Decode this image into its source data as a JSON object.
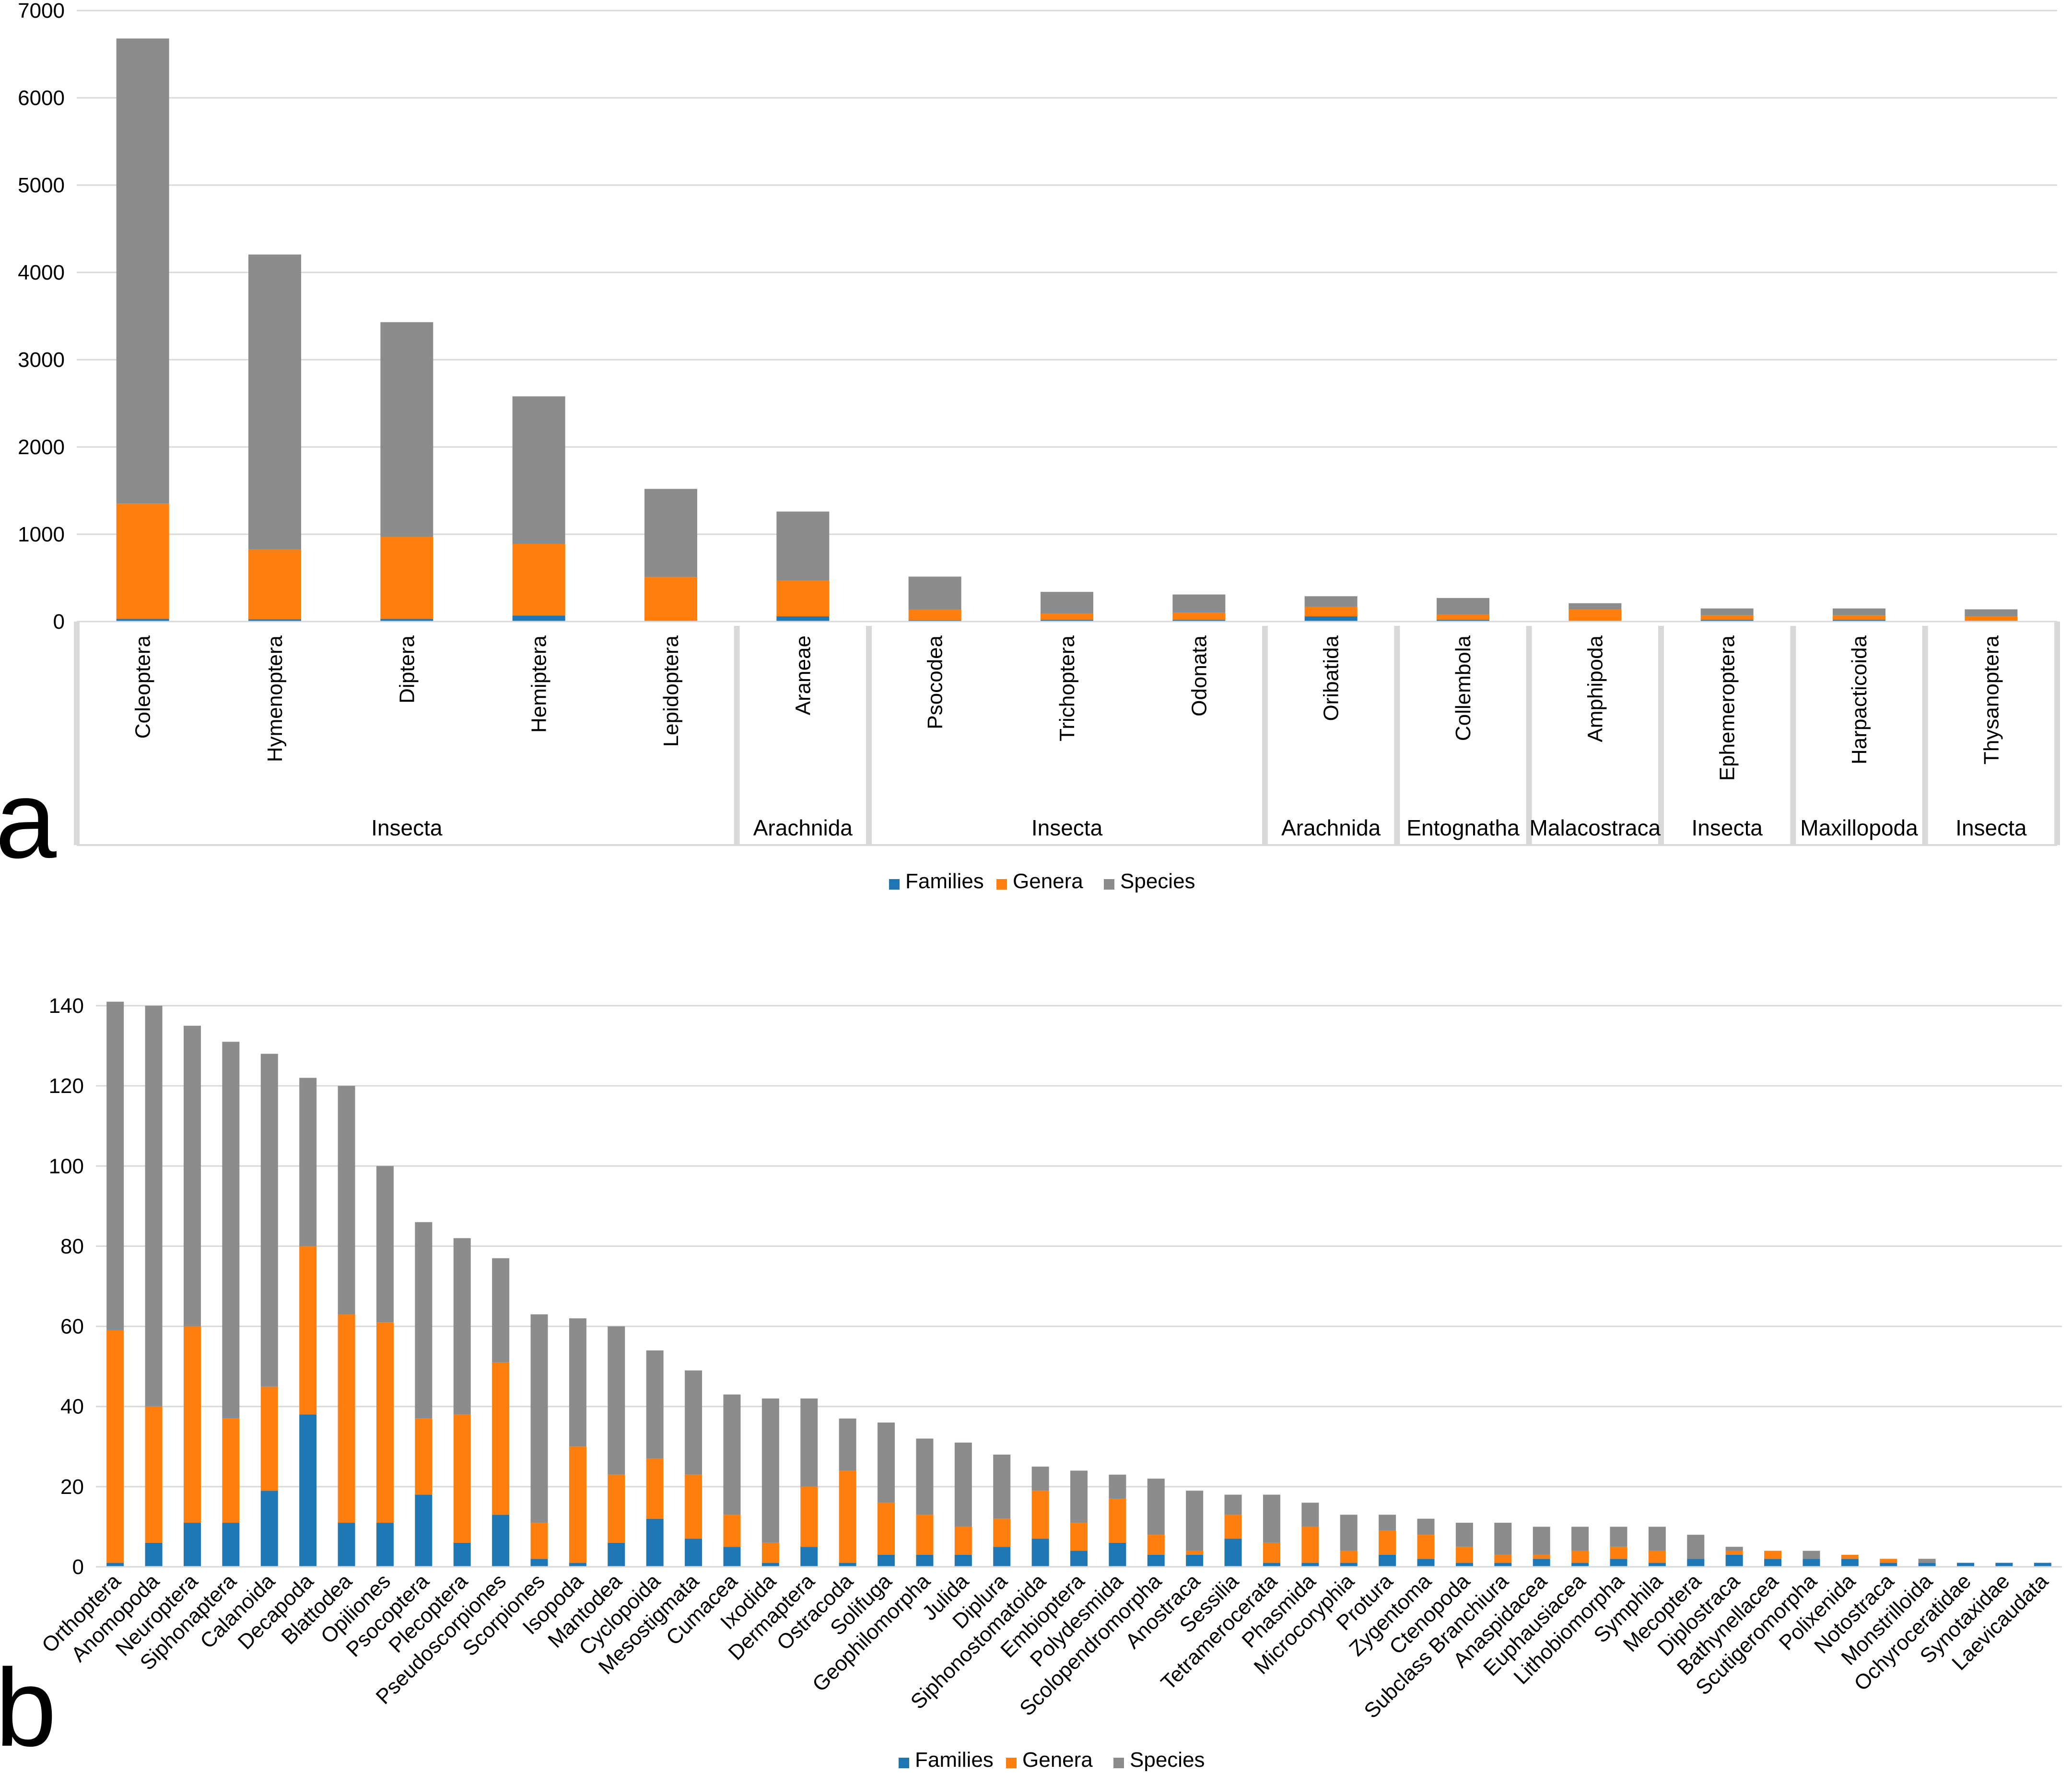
{
  "colors": {
    "families": "#1f77b4",
    "genera": "#ff7f0e",
    "species": "#8c8c8c"
  },
  "chart_data": [
    {
      "panel": "a",
      "type": "bar",
      "stacked": true,
      "ylim": [
        0,
        7000
      ],
      "yticks": [
        0,
        1000,
        2000,
        3000,
        4000,
        5000,
        6000,
        7000
      ],
      "categories": [
        "Coleoptera",
        "Hymenoptera",
        "Diptera",
        "Hemiptera",
        "Lepidoptera",
        "Araneae",
        "Psocodea",
        "Trichoptera",
        "Odonata",
        "Oribatida",
        "Collembola",
        "Amphipoda",
        "Ephemeroptera",
        "Harpacticoida",
        "Thysanoptera"
      ],
      "groups": [
        {
          "label": "Insecta",
          "count": 5
        },
        {
          "label": "Arachnida",
          "count": 1
        },
        {
          "label": "Insecta",
          "count": 3
        },
        {
          "label": "Arachnida",
          "count": 1
        },
        {
          "label": "Entognatha",
          "count": 1
        },
        {
          "label": "Malacostraca",
          "count": 1
        },
        {
          "label": "Insecta",
          "count": 1
        },
        {
          "label": "Maxillopoda",
          "count": 1
        },
        {
          "label": "Insecta",
          "count": 1
        }
      ],
      "series": [
        {
          "name": "Families",
          "values": [
            30,
            25,
            30,
            70,
            10,
            60,
            15,
            20,
            20,
            60,
            20,
            10,
            20,
            20,
            10
          ]
        },
        {
          "name": "Genera",
          "values": [
            1320,
            800,
            940,
            820,
            500,
            410,
            120,
            70,
            80,
            110,
            60,
            130,
            50,
            50,
            50
          ]
        },
        {
          "name": "Species",
          "values": [
            5330,
            3380,
            2460,
            1690,
            1010,
            790,
            380,
            250,
            210,
            120,
            190,
            70,
            80,
            80,
            80
          ]
        }
      ]
    },
    {
      "panel": "b",
      "type": "bar",
      "stacked": true,
      "ylim": [
        0,
        140
      ],
      "yticks": [
        0,
        20,
        40,
        60,
        80,
        100,
        120,
        140
      ],
      "categories": [
        "Orthoptera",
        "Anomopoda",
        "Neuroptera",
        "Siphonaptera",
        "Calanoida",
        "Decapoda",
        "Blattodea",
        "Opiliones",
        "Psocoptera",
        "Plecoptera",
        "Pseudoscorpiones",
        "Scorpiones",
        "Isopoda",
        "Mantodea",
        "Cyclopoida",
        "Mesostigmata",
        "Cumacea",
        "Ixodida",
        "Dermaptera",
        "Ostracoda",
        "Solifuga",
        "Geophilomorpha",
        "Julida",
        "Diplura",
        "Siphonostomatoida",
        "Embioptera",
        "Polydesmida",
        "Scolopendromorpha",
        "Anostraca",
        "Sessilia",
        "Tetramerocerata",
        "Phasmida",
        "Microcoryphia",
        "Protura",
        "Zygentoma",
        "Ctenopoda",
        "Subclass Branchiura",
        "Anaspidacea",
        "Euphausiacea",
        "Lithobiomorpha",
        "Symphila",
        "Mecoptera",
        "Diplostraca",
        "Bathynellacea",
        "Scutigeromorpha",
        "Polixenida",
        "Notostraca",
        "Monstrilloida",
        "Ochyroceratidae",
        "Synotaxidae",
        "Laevicaudata"
      ],
      "series": [
        {
          "name": "Families",
          "values": [
            1,
            6,
            11,
            11,
            19,
            38,
            11,
            11,
            18,
            6,
            13,
            2,
            1,
            6,
            12,
            7,
            5,
            1,
            5,
            1,
            3,
            3,
            3,
            5,
            7,
            4,
            6,
            3,
            3,
            7,
            1,
            1,
            1,
            3,
            2,
            1,
            1,
            2,
            1,
            2,
            1,
            2,
            3,
            2,
            2,
            2,
            1,
            1,
            1,
            1,
            1
          ]
        },
        {
          "name": "Genera",
          "values": [
            58,
            34,
            49,
            26,
            26,
            42,
            52,
            50,
            19,
            32,
            38,
            9,
            29,
            17,
            15,
            16,
            8,
            5,
            15,
            23,
            13,
            10,
            7,
            7,
            12,
            7,
            11,
            5,
            1,
            6,
            5,
            9,
            3,
            6,
            6,
            4,
            2,
            1,
            3,
            3,
            3,
            0,
            1,
            2,
            0,
            1,
            1,
            0,
            0,
            0,
            0
          ]
        },
        {
          "name": "Species",
          "values": [
            82,
            100,
            75,
            94,
            83,
            42,
            57,
            39,
            49,
            44,
            26,
            52,
            32,
            37,
            27,
            26,
            30,
            36,
            22,
            13,
            20,
            19,
            21,
            16,
            6,
            13,
            6,
            14,
            15,
            5,
            12,
            6,
            9,
            4,
            4,
            6,
            8,
            7,
            6,
            5,
            6,
            6,
            1,
            0,
            2,
            0,
            0,
            1,
            0,
            0,
            0
          ]
        }
      ]
    }
  ],
  "panels": {
    "a": "a",
    "b": "b"
  },
  "legend": {
    "families": "Families",
    "genera": "Genera",
    "species": "Species"
  }
}
